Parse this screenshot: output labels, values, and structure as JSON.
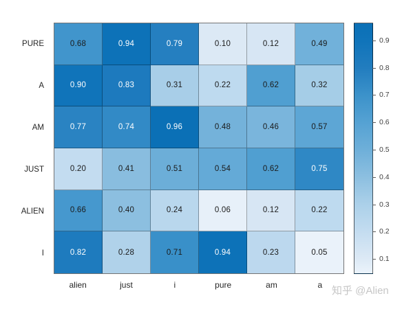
{
  "figure": {
    "background": "#ffffff",
    "watermark": "知乎 @Alien",
    "watermark_color": "#c6c6c6"
  },
  "chart_data": {
    "type": "heatmap",
    "title": "",
    "rows": [
      "PURE",
      "A",
      "AM",
      "JUST",
      "ALIEN",
      "I"
    ],
    "columns": [
      "alien",
      "just",
      "i",
      "pure",
      "am",
      "a"
    ],
    "values": [
      [
        0.68,
        0.94,
        0.79,
        0.1,
        0.12,
        0.49
      ],
      [
        0.9,
        0.83,
        0.31,
        0.22,
        0.62,
        0.32
      ],
      [
        0.77,
        0.74,
        0.96,
        0.48,
        0.46,
        0.57
      ],
      [
        0.2,
        0.41,
        0.51,
        0.54,
        0.62,
        0.75
      ],
      [
        0.66,
        0.4,
        0.24,
        0.06,
        0.12,
        0.22
      ],
      [
        0.82,
        0.28,
        0.71,
        0.94,
        0.23,
        0.05
      ]
    ],
    "value_decimals": 2,
    "grid_on": true,
    "colorbar": {
      "position": "right",
      "ticks": [
        0.9,
        0.8,
        0.7,
        0.6,
        0.5,
        0.4,
        0.3,
        0.2,
        0.1
      ],
      "tick_decimals": 1,
      "vmin": 0.045,
      "vmax": 0.965
    },
    "colormap": {
      "name": "blues",
      "stops": [
        [
          0.0,
          "#f7fbff"
        ],
        [
          0.1,
          "#dce9f5"
        ],
        [
          0.2,
          "#c3dcf0"
        ],
        [
          0.3,
          "#abd0e9"
        ],
        [
          0.4,
          "#8cbfe0"
        ],
        [
          0.5,
          "#6eafd9"
        ],
        [
          0.6,
          "#55a2d3"
        ],
        [
          0.7,
          "#3c92ca"
        ],
        [
          0.8,
          "#227dbf"
        ],
        [
          0.9,
          "#1074ba"
        ],
        [
          1.0,
          "#086eb4"
        ]
      ]
    },
    "cell_text_colors": {
      "dark": "#1a1a1a",
      "light": "#ffffff",
      "white_threshold": 0.72
    },
    "axis_label_color": "#262626"
  }
}
